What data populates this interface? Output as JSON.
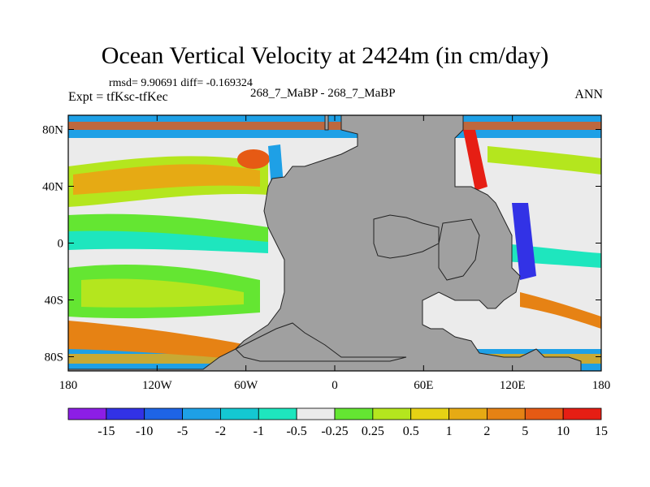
{
  "header": {
    "title": "Ocean Vertical Velocity at 2424m (in cm/day)",
    "stats": "rmsd= 9.90691 diff= -0.169324",
    "experiment": "Expt = tfKsc-tfKec",
    "case": "268_7_MaBP - 268_7_MaBP",
    "season": "ANN"
  },
  "map": {
    "land_color": "#a0a0a0",
    "lat_ticks": [
      {
        "value": 80,
        "label": "80N"
      },
      {
        "value": 40,
        "label": "40N"
      },
      {
        "value": 0,
        "label": "0"
      },
      {
        "value": -40,
        "label": "40S"
      },
      {
        "value": -80,
        "label": "80S"
      }
    ],
    "lon_ticks": [
      {
        "value": -180,
        "label": "180"
      },
      {
        "value": -120,
        "label": "120W"
      },
      {
        "value": -60,
        "label": "60W"
      },
      {
        "value": 0,
        "label": "0"
      },
      {
        "value": 60,
        "label": "60E"
      },
      {
        "value": 120,
        "label": "120E"
      },
      {
        "value": 180,
        "label": "180"
      }
    ]
  },
  "colorbar": {
    "colors": [
      "#8c1ee6",
      "#3232e6",
      "#1e64e6",
      "#1ea0e6",
      "#14c8d2",
      "#1ee6be",
      "#ebebeb",
      "#64e632",
      "#b4e61e",
      "#e6d214",
      "#e6aa14",
      "#e68214",
      "#e65a14",
      "#e61e14"
    ],
    "labels": [
      "-15",
      "-10",
      "-5",
      "-2",
      "-1",
      "-0.5",
      "-0.25",
      "0.25",
      "0.5",
      "1",
      "2",
      "5",
      "10",
      "15"
    ]
  }
}
